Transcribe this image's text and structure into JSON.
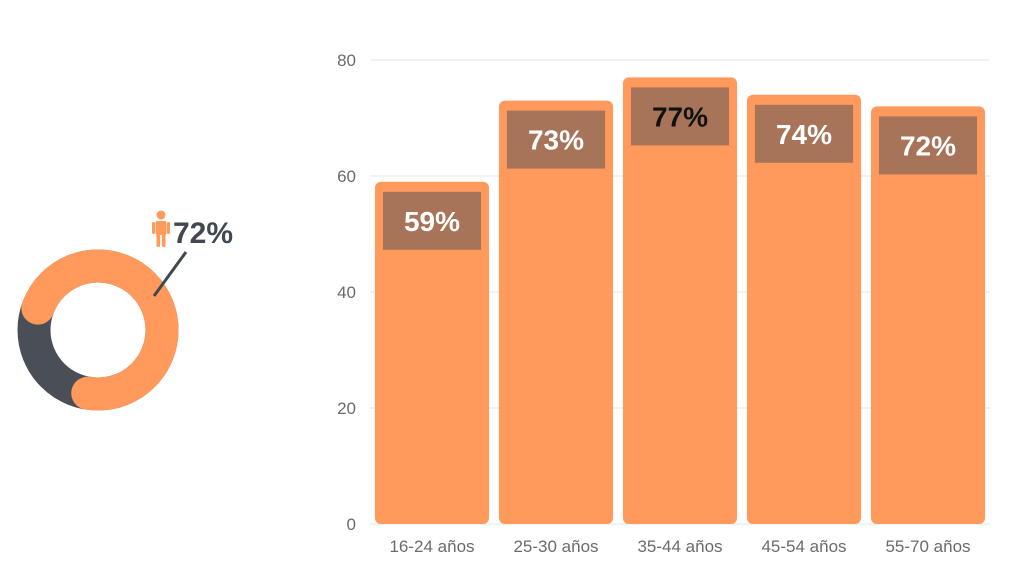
{
  "colors": {
    "accent": "#FF9A5C",
    "dark": "#4A4F57",
    "label_box": "#A87459",
    "grid": "#E6E6E6",
    "axis_text": "#6B6B6B"
  },
  "donut": {
    "value": 72,
    "label": "72%",
    "icon": "person-icon"
  },
  "chart_data": {
    "type": "bar",
    "categories": [
      "16-24 años",
      "25-30 años",
      "35-44 años",
      "45-54 años",
      "55-70 años"
    ],
    "values": [
      59,
      73,
      77,
      74,
      72
    ],
    "data_labels": [
      "59%",
      "73%",
      "77%",
      "74%",
      "72%"
    ],
    "ylim": [
      0,
      80
    ],
    "yticks": [
      "0",
      "20",
      "40",
      "60",
      "80"
    ],
    "grid": true,
    "title": "",
    "xlabel": "",
    "ylabel": ""
  }
}
